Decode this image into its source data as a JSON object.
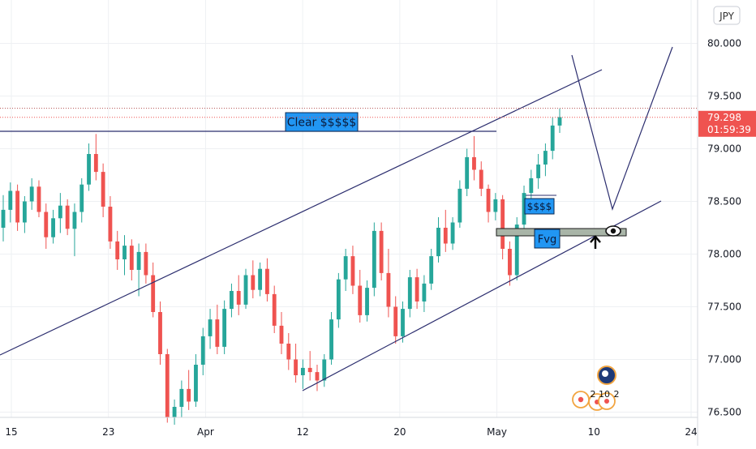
{
  "currency_badge": "JPY",
  "price_tag": {
    "price": "79.298",
    "countdown": "01:59:39"
  },
  "annotations": {
    "clear": "Clear $$$$$",
    "dollars": "$$$$",
    "fvg": "Fvg"
  },
  "event_counts": [
    "2",
    "10",
    "2"
  ],
  "colors": {
    "up": "#26a69a",
    "down": "#ef5350",
    "trendline": "#2b2d6e",
    "label_bg": "#2196f3",
    "price_tag": "#ef5350",
    "fvg_fill": "#a9b5a8"
  },
  "chart_data": {
    "type": "candlestick",
    "title": "",
    "xlabel": "",
    "ylabel": "",
    "x_ticks": [
      "15",
      "23",
      "Apr",
      "12",
      "20",
      "May",
      "10",
      "24"
    ],
    "y_ticks": [
      "80.000",
      "79.500",
      "79.000",
      "78.500",
      "78.000",
      "77.500",
      "77.000",
      "76.500"
    ],
    "ylim": [
      76.45,
      80.35
    ],
    "current_price": 79.298,
    "recent_high": 79.385,
    "grid": true,
    "candles": [
      [
        78.25,
        78.56,
        78.12,
        78.42
      ],
      [
        78.42,
        78.68,
        78.3,
        78.6
      ],
      [
        78.6,
        78.66,
        78.22,
        78.3
      ],
      [
        78.3,
        78.55,
        78.2,
        78.5
      ],
      [
        78.5,
        78.72,
        78.42,
        78.64
      ],
      [
        78.64,
        78.7,
        78.35,
        78.4
      ],
      [
        78.4,
        78.48,
        78.05,
        78.16
      ],
      [
        78.16,
        78.42,
        78.1,
        78.34
      ],
      [
        78.34,
        78.58,
        78.2,
        78.46
      ],
      [
        78.46,
        78.52,
        78.18,
        78.24
      ],
      [
        78.24,
        78.48,
        77.98,
        78.4
      ],
      [
        78.4,
        78.72,
        78.3,
        78.66
      ],
      [
        78.66,
        79.05,
        78.6,
        78.95
      ],
      [
        78.95,
        79.14,
        78.7,
        78.78
      ],
      [
        78.78,
        78.86,
        78.35,
        78.45
      ],
      [
        78.45,
        78.55,
        78.05,
        78.12
      ],
      [
        78.12,
        78.22,
        77.85,
        77.95
      ],
      [
        77.95,
        78.18,
        77.8,
        78.08
      ],
      [
        78.08,
        78.14,
        77.75,
        77.85
      ],
      [
        77.85,
        78.1,
        77.6,
        78.02
      ],
      [
        78.02,
        78.1,
        77.72,
        77.8
      ],
      [
        77.8,
        77.92,
        77.4,
        77.45
      ],
      [
        77.45,
        77.55,
        76.95,
        77.05
      ],
      [
        77.05,
        77.1,
        76.4,
        76.45
      ],
      [
        76.45,
        76.62,
        76.38,
        76.55
      ],
      [
        76.55,
        76.8,
        76.45,
        76.72
      ],
      [
        76.72,
        76.9,
        76.52,
        76.6
      ],
      [
        76.6,
        77.05,
        76.55,
        76.95
      ],
      [
        76.95,
        77.3,
        76.85,
        77.22
      ],
      [
        77.22,
        77.48,
        77.1,
        77.38
      ],
      [
        77.38,
        77.52,
        77.05,
        77.12
      ],
      [
        77.12,
        77.56,
        77.05,
        77.48
      ],
      [
        77.48,
        77.72,
        77.4,
        77.65
      ],
      [
        77.65,
        77.8,
        77.42,
        77.52
      ],
      [
        77.52,
        77.86,
        77.48,
        77.8
      ],
      [
        77.8,
        77.94,
        77.58,
        77.66
      ],
      [
        77.66,
        77.92,
        77.6,
        77.86
      ],
      [
        77.86,
        77.96,
        77.55,
        77.62
      ],
      [
        77.62,
        77.7,
        77.25,
        77.32
      ],
      [
        77.32,
        77.45,
        77.05,
        77.15
      ],
      [
        77.15,
        77.25,
        76.9,
        77.0
      ],
      [
        77.0,
        77.15,
        76.78,
        76.85
      ],
      [
        76.85,
        77.0,
        76.72,
        76.92
      ],
      [
        76.92,
        77.08,
        76.8,
        76.88
      ],
      [
        76.88,
        76.95,
        76.7,
        76.8
      ],
      [
        76.8,
        77.05,
        76.74,
        77.0
      ],
      [
        77.0,
        77.45,
        76.95,
        77.38
      ],
      [
        77.38,
        77.82,
        77.3,
        77.76
      ],
      [
        77.76,
        78.05,
        77.65,
        77.98
      ],
      [
        77.98,
        78.08,
        77.62,
        77.7
      ],
      [
        77.7,
        77.85,
        77.35,
        77.42
      ],
      [
        77.42,
        77.75,
        77.36,
        77.68
      ],
      [
        77.68,
        78.3,
        77.6,
        78.22
      ],
      [
        78.22,
        78.3,
        77.75,
        77.82
      ],
      [
        77.82,
        78.05,
        77.4,
        77.5
      ],
      [
        77.5,
        77.6,
        77.15,
        77.22
      ],
      [
        77.22,
        77.55,
        77.16,
        77.48
      ],
      [
        77.48,
        77.85,
        77.4,
        77.78
      ],
      [
        77.78,
        77.86,
        77.48,
        77.55
      ],
      [
        77.55,
        77.8,
        77.45,
        77.72
      ],
      [
        77.72,
        78.05,
        77.66,
        77.98
      ],
      [
        77.98,
        78.35,
        77.92,
        78.25
      ],
      [
        78.25,
        78.42,
        78.02,
        78.1
      ],
      [
        78.1,
        78.35,
        78.04,
        78.3
      ],
      [
        78.3,
        78.7,
        78.25,
        78.62
      ],
      [
        78.62,
        79.0,
        78.55,
        78.92
      ],
      [
        78.92,
        79.12,
        78.7,
        78.8
      ],
      [
        78.8,
        78.88,
        78.55,
        78.62
      ],
      [
        78.62,
        78.66,
        78.3,
        78.4
      ],
      [
        78.4,
        78.58,
        78.32,
        78.52
      ],
      [
        78.52,
        78.56,
        77.95,
        78.05
      ],
      [
        78.05,
        78.12,
        77.7,
        77.8
      ],
      [
        77.8,
        78.35,
        77.75,
        78.28
      ],
      [
        78.28,
        78.65,
        78.2,
        78.58
      ],
      [
        78.58,
        78.8,
        78.48,
        78.72
      ],
      [
        78.72,
        78.95,
        78.62,
        78.85
      ],
      [
        78.85,
        79.05,
        78.74,
        78.98
      ],
      [
        78.98,
        79.3,
        78.9,
        79.22
      ],
      [
        79.22,
        79.38,
        79.15,
        79.3
      ]
    ]
  }
}
